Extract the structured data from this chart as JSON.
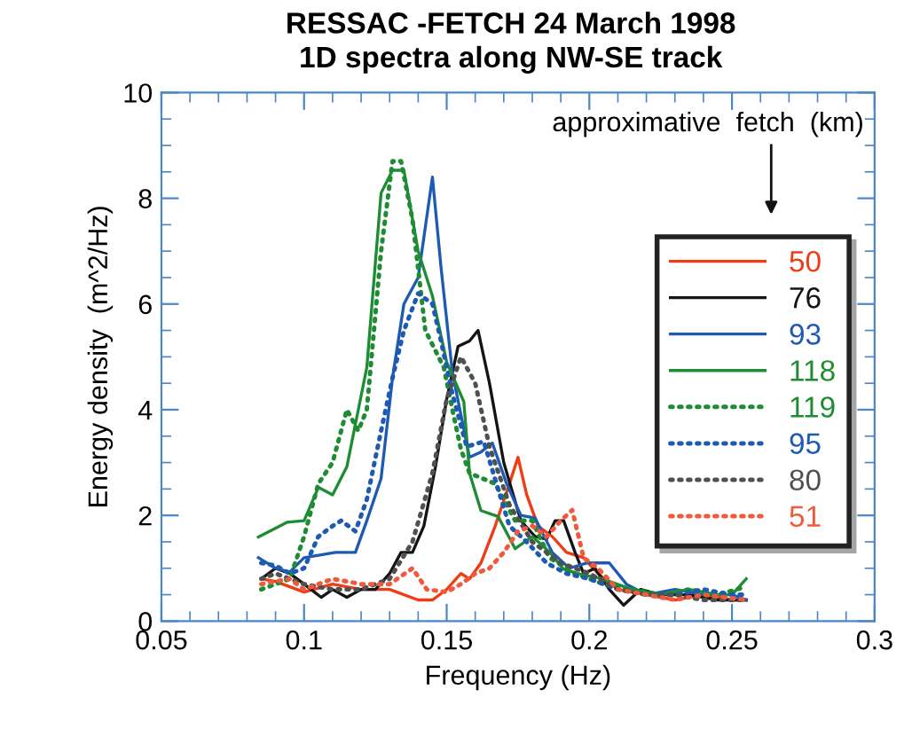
{
  "chart_data": {
    "type": "line",
    "title": "RESSAC -FETCH 24 March 1998",
    "subtitle": "1D spectra along NW-SE track",
    "xlabel": "Frequency (Hz)",
    "ylabel": "Energy density  (m^2/Hz)",
    "legend_title": "approximative  fetch  (km)",
    "xlim": [
      0.05,
      0.3
    ],
    "xticks": [
      0.05,
      0.1,
      0.15,
      0.2,
      0.25,
      0.3
    ],
    "ylim": [
      0,
      10
    ],
    "yticks": [
      0,
      2,
      4,
      6,
      8,
      10
    ],
    "grid": false,
    "legend": "right",
    "marker": "none",
    "series": [
      {
        "name": "50",
        "color": "#f03c14",
        "line_style": "solid",
        "x": [
          0.085,
          0.09,
          0.1,
          0.11,
          0.12,
          0.13,
          0.14,
          0.145,
          0.15,
          0.155,
          0.158,
          0.162,
          0.167,
          0.172,
          0.175,
          0.178,
          0.182,
          0.187,
          0.192,
          0.198,
          0.203,
          0.21,
          0.22,
          0.23,
          0.24,
          0.25,
          0.255
        ],
        "values": [
          0.8,
          0.75,
          0.55,
          0.7,
          0.6,
          0.6,
          0.4,
          0.4,
          0.6,
          0.9,
          0.8,
          1.1,
          1.8,
          2.6,
          3.1,
          2.4,
          1.8,
          1.6,
          1.3,
          1.2,
          0.9,
          0.6,
          0.5,
          0.4,
          0.5,
          0.4,
          0.4
        ]
      },
      {
        "name": "76",
        "color": "#141414",
        "line_style": "solid",
        "x": [
          0.085,
          0.09,
          0.095,
          0.1,
          0.106,
          0.11,
          0.115,
          0.12,
          0.125,
          0.13,
          0.134,
          0.138,
          0.142,
          0.146,
          0.15,
          0.154,
          0.158,
          0.161,
          0.165,
          0.17,
          0.176,
          0.181,
          0.185,
          0.188,
          0.191,
          0.195,
          0.198,
          0.202,
          0.207,
          0.212,
          0.218,
          0.225,
          0.235,
          0.245,
          0.255
        ],
        "values": [
          0.8,
          1.0,
          0.9,
          0.7,
          0.45,
          0.6,
          0.45,
          0.6,
          0.6,
          0.9,
          1.3,
          1.3,
          1.8,
          2.9,
          4.2,
          5.2,
          5.3,
          5.5,
          4.5,
          3.0,
          1.9,
          1.6,
          1.55,
          1.9,
          1.9,
          1.3,
          0.9,
          1.0,
          0.6,
          0.3,
          0.6,
          0.5,
          0.5,
          0.4,
          0.4
        ]
      },
      {
        "name": "93",
        "color": "#1e5ab4",
        "line_style": "solid",
        "x": [
          0.084,
          0.09,
          0.095,
          0.1,
          0.111,
          0.118,
          0.122,
          0.127,
          0.131,
          0.135,
          0.14,
          0.145,
          0.148,
          0.152,
          0.158,
          0.162,
          0.166,
          0.171,
          0.176,
          0.181,
          0.187,
          0.193,
          0.199,
          0.207,
          0.213,
          0.22,
          0.23,
          0.24,
          0.25,
          0.255
        ],
        "values": [
          1.2,
          1.0,
          0.93,
          1.2,
          1.3,
          1.3,
          1.9,
          2.7,
          4.6,
          6.0,
          6.5,
          8.4,
          6.7,
          4.7,
          3.1,
          3.2,
          3.37,
          2.6,
          2.0,
          1.95,
          1.3,
          1.0,
          1.1,
          1.1,
          0.7,
          0.5,
          0.6,
          0.5,
          0.5,
          0.4
        ]
      },
      {
        "name": "118",
        "color": "#1e8c32",
        "line_style": "solid",
        "x": [
          0.084,
          0.094,
          0.1,
          0.105,
          0.11,
          0.115,
          0.122,
          0.127,
          0.131,
          0.135,
          0.14,
          0.145,
          0.15,
          0.156,
          0.158,
          0.162,
          0.168,
          0.174,
          0.18,
          0.186,
          0.191,
          0.198,
          0.204,
          0.215,
          0.225,
          0.235,
          0.245,
          0.25,
          0.255
        ],
        "values": [
          1.59,
          1.87,
          1.9,
          2.53,
          2.39,
          2.92,
          4.8,
          8.1,
          8.53,
          8.53,
          7.0,
          6.15,
          4.9,
          4.15,
          2.8,
          2.09,
          1.98,
          1.37,
          1.6,
          1.31,
          0.98,
          0.87,
          0.81,
          0.6,
          0.5,
          0.6,
          0.5,
          0.5,
          0.8
        ]
      },
      {
        "name": "119",
        "color": "#1e8c32",
        "line_style": "dotted",
        "x": [
          0.085,
          0.095,
          0.1,
          0.105,
          0.11,
          0.115,
          0.119,
          0.122,
          0.127,
          0.131,
          0.134,
          0.138,
          0.1425,
          0.149,
          0.152,
          0.155,
          0.158,
          0.167,
          0.174,
          0.18,
          0.186,
          0.195,
          0.205,
          0.215,
          0.225,
          0.235,
          0.245,
          0.255
        ],
        "values": [
          0.6,
          0.8,
          1.6,
          2.6,
          3.0,
          4.0,
          3.6,
          4.0,
          7.0,
          8.7,
          8.7,
          7.6,
          5.5,
          4.8,
          4.0,
          3.25,
          2.8,
          2.6,
          1.9,
          1.9,
          1.2,
          0.9,
          0.7,
          0.6,
          0.5,
          0.6,
          0.5,
          0.65
        ]
      },
      {
        "name": "95",
        "color": "#1e5ab4",
        "line_style": "dotted",
        "x": [
          0.085,
          0.09,
          0.095,
          0.1,
          0.105,
          0.11,
          0.113,
          0.118,
          0.122,
          0.127,
          0.131,
          0.135,
          0.14,
          0.145,
          0.148,
          0.152,
          0.157,
          0.163,
          0.168,
          0.172,
          0.178,
          0.185,
          0.192,
          0.2,
          0.21,
          0.22,
          0.23,
          0.24,
          0.25,
          0.255
        ],
        "values": [
          1.1,
          1.05,
          0.9,
          1.0,
          1.6,
          1.8,
          1.9,
          1.7,
          2.3,
          3.6,
          4.6,
          5.5,
          6.2,
          6.0,
          5.3,
          4.3,
          3.3,
          3.4,
          2.5,
          1.8,
          1.5,
          1.1,
          0.9,
          0.8,
          0.6,
          0.5,
          0.5,
          0.6,
          0.5,
          0.5
        ]
      },
      {
        "name": "80",
        "color": "#505050",
        "line_style": "dotted",
        "x": [
          0.085,
          0.09,
          0.1,
          0.11,
          0.12,
          0.13,
          0.138,
          0.145,
          0.15,
          0.155,
          0.16,
          0.165,
          0.172,
          0.18,
          0.19,
          0.2,
          0.21,
          0.22,
          0.23,
          0.24,
          0.255
        ],
        "values": [
          0.8,
          0.9,
          0.7,
          0.6,
          0.6,
          0.8,
          1.5,
          2.8,
          4.2,
          5.0,
          4.5,
          3.3,
          2.2,
          1.5,
          1.1,
          0.9,
          0.6,
          0.5,
          0.5,
          0.4,
          0.4
        ]
      },
      {
        "name": "51",
        "color": "#f05a3c",
        "line_style": "dotted",
        "x": [
          0.085,
          0.095,
          0.1,
          0.11,
          0.12,
          0.13,
          0.138,
          0.143,
          0.15,
          0.155,
          0.16,
          0.165,
          0.17,
          0.175,
          0.18,
          0.185,
          0.19,
          0.194,
          0.198,
          0.203,
          0.21,
          0.22,
          0.23,
          0.24,
          0.255
        ],
        "values": [
          0.7,
          0.8,
          0.6,
          0.8,
          0.7,
          0.7,
          1.0,
          0.6,
          0.55,
          0.7,
          0.9,
          1.0,
          1.3,
          1.7,
          1.8,
          1.6,
          1.9,
          2.1,
          1.2,
          1.0,
          0.6,
          0.5,
          0.4,
          0.5,
          0.4
        ]
      }
    ]
  }
}
